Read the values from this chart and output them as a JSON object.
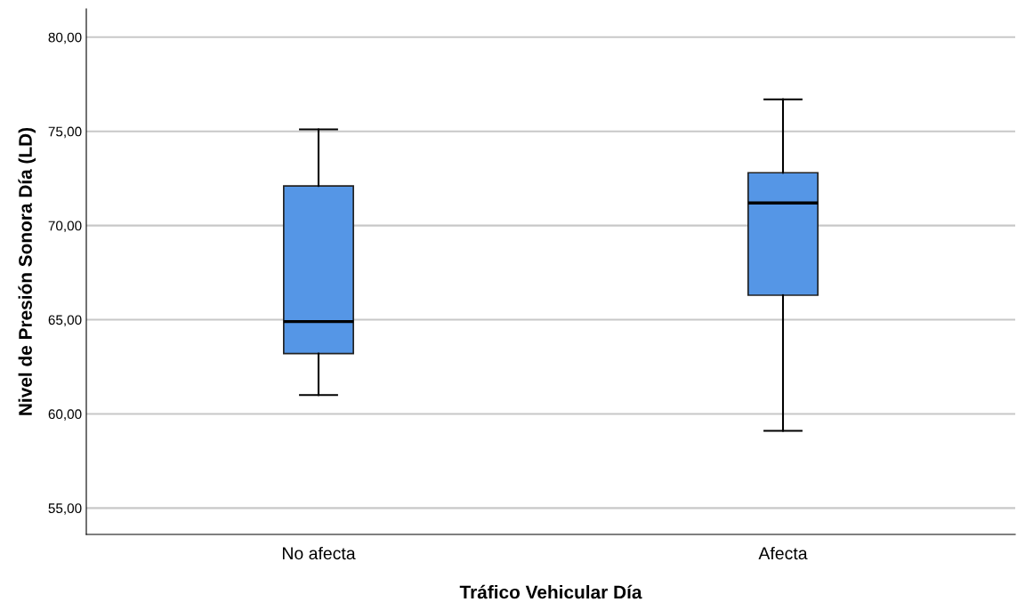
{
  "chart_data": {
    "type": "box",
    "xlabel": "Tráfico Vehicular Día",
    "ylabel": "Nivel de Presión Sonora Día (LD)",
    "categories": [
      "No afecta",
      "Afecta"
    ],
    "boxes": [
      {
        "low": 61.0,
        "q1": 63.2,
        "median": 64.9,
        "q3": 72.1,
        "high": 75.1
      },
      {
        "low": 59.1,
        "q1": 66.3,
        "median": 71.2,
        "q3": 72.8,
        "high": 76.7
      }
    ],
    "color": "#5596e6",
    "ylim": [
      53.6,
      81.5
    ],
    "yticks": [
      {
        "value": 55,
        "label": "55,00"
      },
      {
        "value": 60,
        "label": "60,00"
      },
      {
        "value": 65,
        "label": "65,00"
      },
      {
        "value": 70,
        "label": "70,00"
      },
      {
        "value": 75,
        "label": "75,00"
      },
      {
        "value": 80,
        "label": "80,00"
      }
    ],
    "grid": "y"
  }
}
